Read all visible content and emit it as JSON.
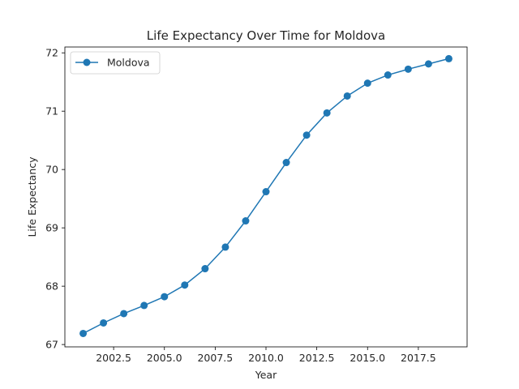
{
  "chart_data": {
    "type": "line",
    "title": "Life Expectancy Over Time for Moldova",
    "xlabel": "Year",
    "ylabel": "Life Expectancy",
    "xlim": [
      2000.1,
      2019.9
    ],
    "ylim": [
      66.96,
      72.1
    ],
    "xticks": [
      2002.5,
      2005.0,
      2007.5,
      2010.0,
      2012.5,
      2015.0,
      2017.5
    ],
    "xtick_labels": [
      "2002.5",
      "2005.0",
      "2007.5",
      "2010.0",
      "2012.5",
      "2015.0",
      "2017.5"
    ],
    "yticks": [
      67,
      68,
      69,
      70,
      71,
      72
    ],
    "ytick_labels": [
      "67",
      "68",
      "69",
      "70",
      "71",
      "72"
    ],
    "grid": false,
    "legend_position": "top-left",
    "series": [
      {
        "name": "Moldova",
        "color": "#1f77b4",
        "marker": "circle",
        "x": [
          2001,
          2002,
          2003,
          2004,
          2005,
          2006,
          2007,
          2008,
          2009,
          2010,
          2011,
          2012,
          2013,
          2014,
          2015,
          2016,
          2017,
          2018,
          2019
        ],
        "y": [
          67.19,
          67.37,
          67.53,
          67.67,
          67.82,
          68.02,
          68.3,
          68.67,
          69.12,
          69.62,
          70.12,
          70.59,
          70.97,
          71.26,
          71.48,
          71.62,
          71.72,
          71.81,
          71.9
        ]
      }
    ]
  }
}
